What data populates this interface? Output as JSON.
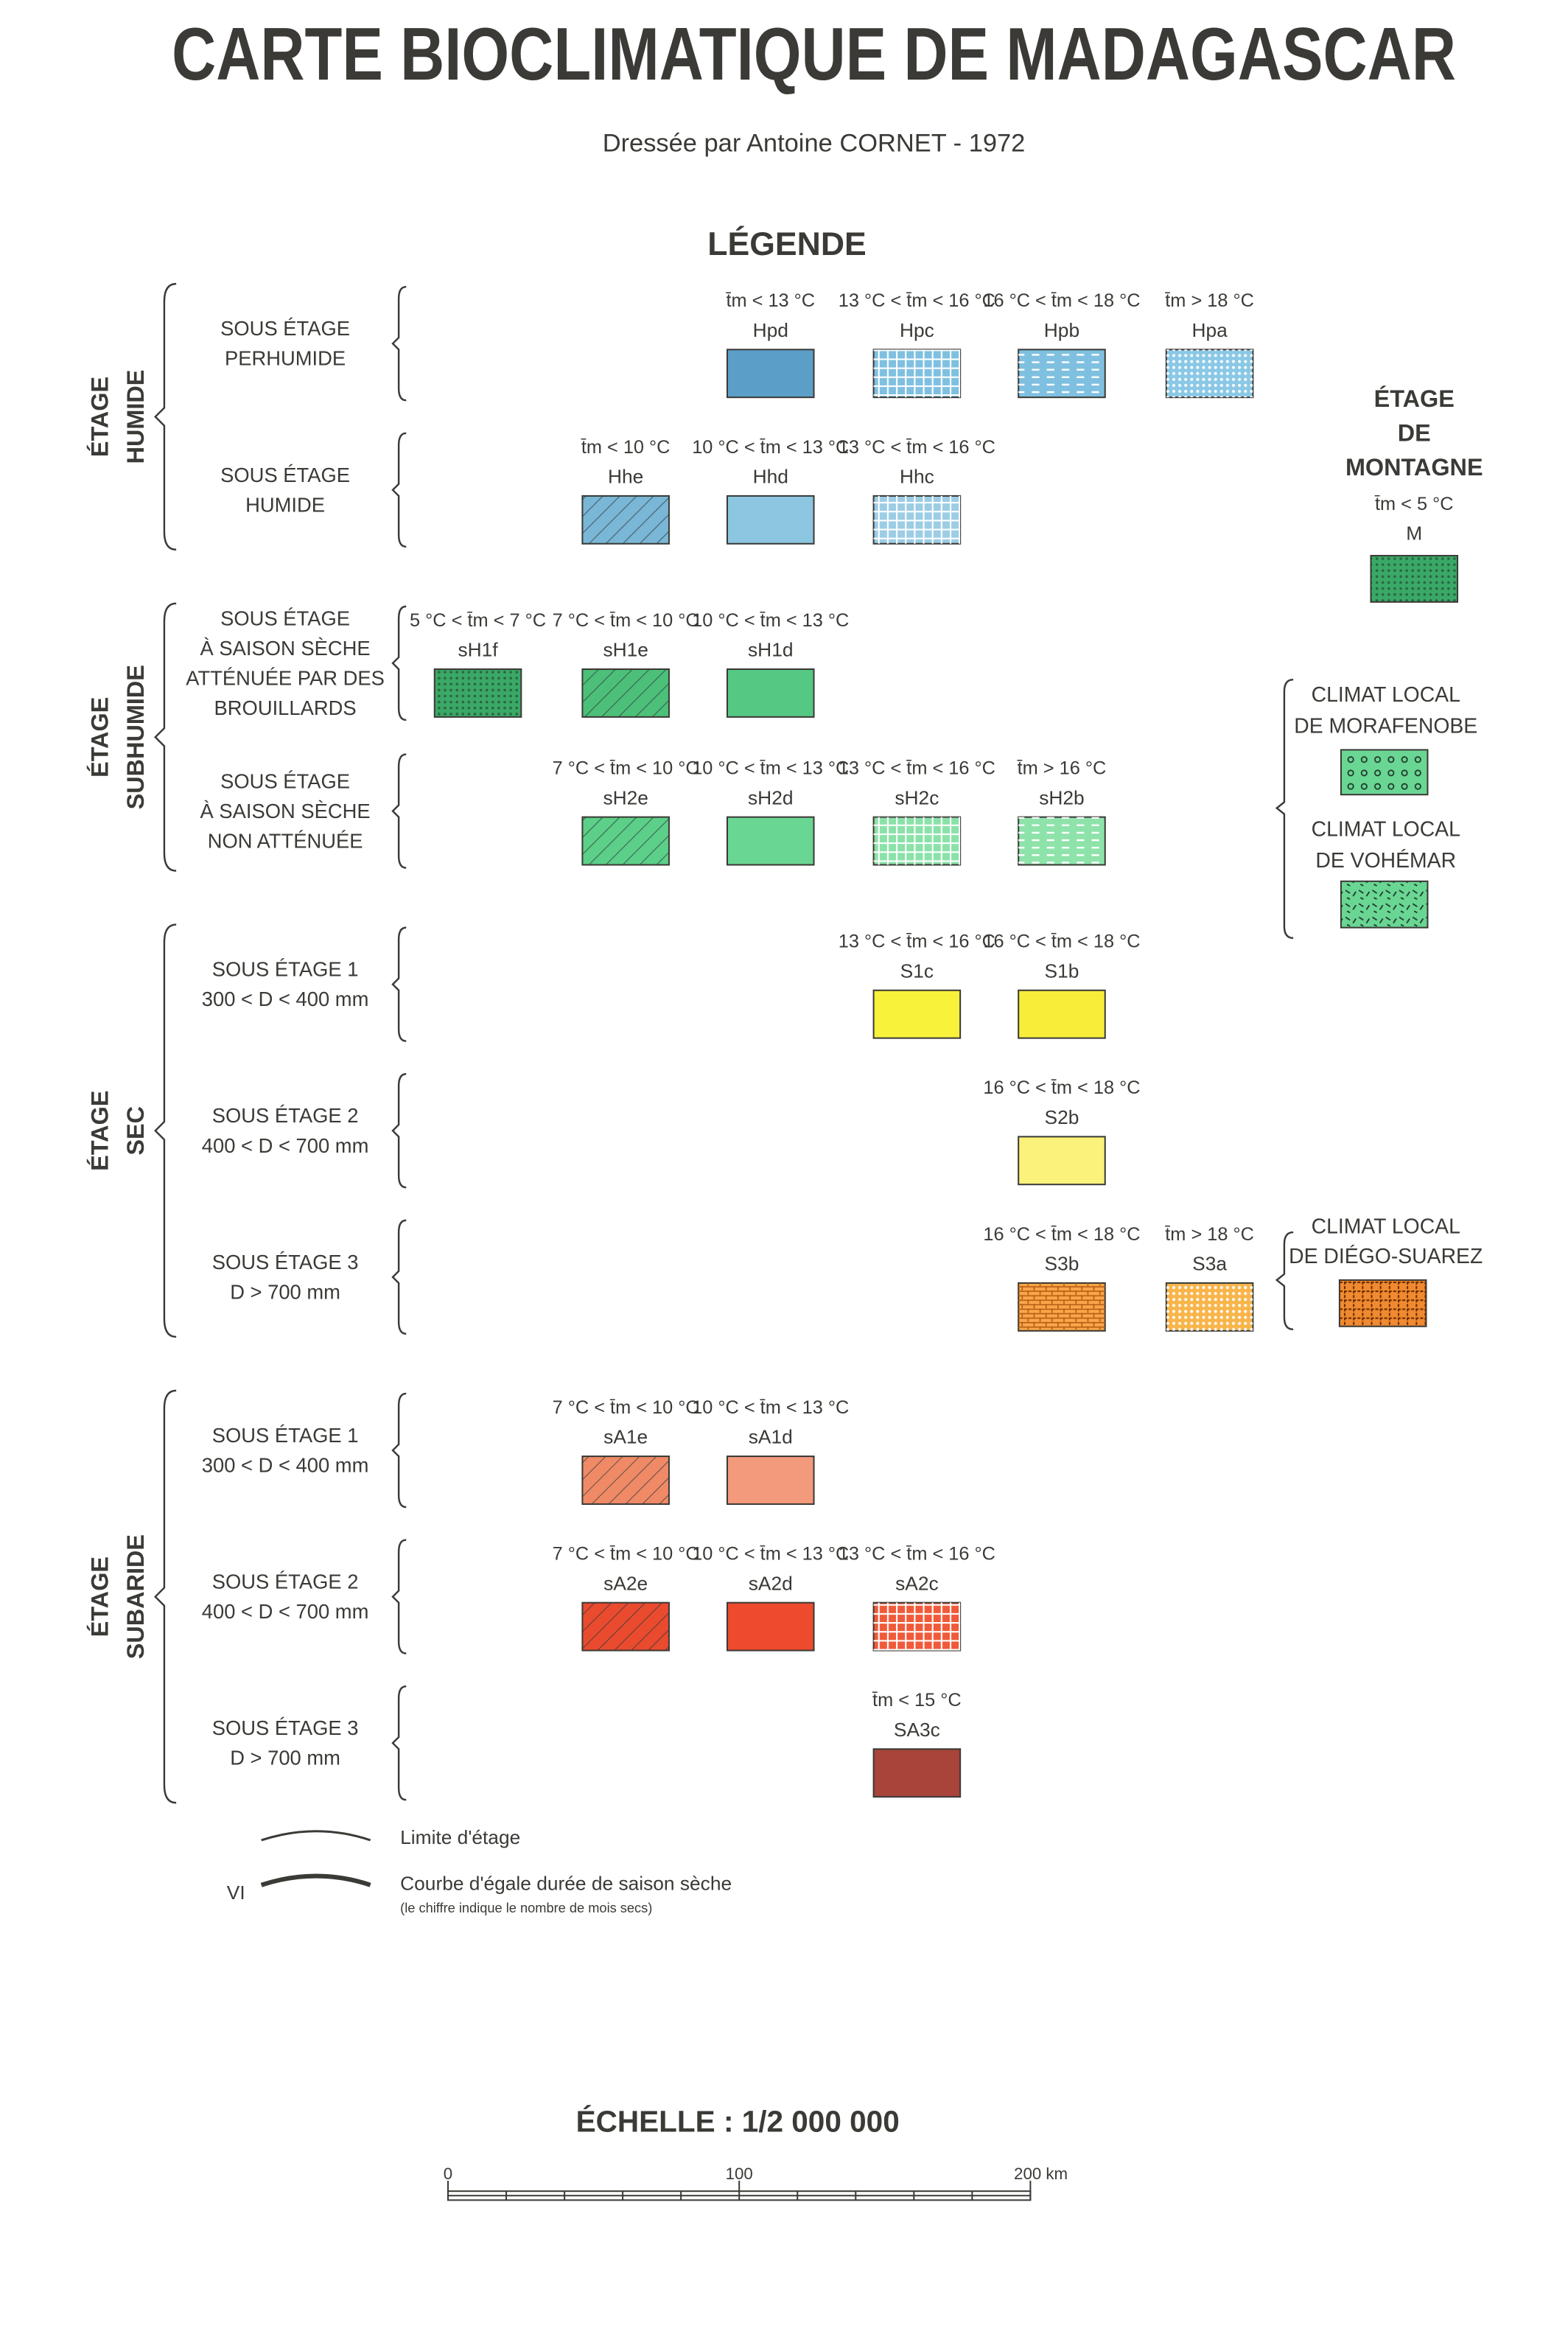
{
  "title": "CARTE BIOCLIMATIQUE DE MADAGASCAR",
  "subtitle": "Dressée par Antoine CORNET - 1972",
  "legend_title": "LÉGENDE",
  "etages": [
    {
      "name": [
        "ÉTAGE",
        "HUMIDE"
      ],
      "sous_etages": [
        {
          "label": [
            "SOUS ÉTAGE",
            "PERHUMIDE"
          ],
          "classes": [
            {
              "range": "t̄m < 13 °C",
              "code": "Hpd"
            },
            {
              "range": "13 °C < t̄m < 16 °C",
              "code": "Hpc"
            },
            {
              "range": "16 °C < t̄m < 18 °C",
              "code": "Hpb"
            },
            {
              "range": "t̄m > 18 °C",
              "code": "Hpa"
            }
          ]
        },
        {
          "label": [
            "SOUS ÉTAGE",
            "HUMIDE"
          ],
          "classes": [
            {
              "range": "t̄m < 10 °C",
              "code": "Hhe"
            },
            {
              "range": "10 °C < t̄m < 13 °C",
              "code": "Hhd"
            },
            {
              "range": "13 °C < t̄m < 16 °C",
              "code": "Hhc"
            }
          ]
        }
      ]
    },
    {
      "name": [
        "ÉTAGE",
        "SUBHUMIDE"
      ],
      "sous_etages": [
        {
          "label": [
            "SOUS ÉTAGE",
            "À SAISON SÈCHE",
            "ATTÉNUÉE PAR DES",
            "BROUILLARDS"
          ],
          "classes": [
            {
              "range": "5 °C < t̄m < 7 °C",
              "code": "sH1f"
            },
            {
              "range": "7 °C < t̄m < 10 °C",
              "code": "sH1e"
            },
            {
              "range": "10 °C < t̄m < 13 °C",
              "code": "sH1d"
            }
          ]
        },
        {
          "label": [
            "SOUS ÉTAGE",
            "À SAISON SÈCHE",
            "NON ATTÉNUÉE"
          ],
          "classes": [
            {
              "range": "7 °C < t̄m < 10 °C",
              "code": "sH2e"
            },
            {
              "range": "10 °C < t̄m < 13 °C",
              "code": "sH2d"
            },
            {
              "range": "13 °C < t̄m < 16 °C",
              "code": "sH2c"
            },
            {
              "range": "t̄m > 16 °C",
              "code": "sH2b"
            }
          ]
        }
      ]
    },
    {
      "name": [
        "ÉTAGE",
        "SEC"
      ],
      "sous_etages": [
        {
          "label": [
            "SOUS ÉTAGE 1",
            "300 < D < 400 mm"
          ],
          "classes": [
            {
              "range": "13 °C < t̄m < 16 °C",
              "code": "S1c"
            },
            {
              "range": "16 °C < t̄m < 18 °C",
              "code": "S1b"
            }
          ]
        },
        {
          "label": [
            "SOUS ÉTAGE 2",
            "400 < D < 700 mm"
          ],
          "classes": [
            {
              "range": "16 °C < t̄m < 18 °C",
              "code": "S2b"
            }
          ]
        },
        {
          "label": [
            "SOUS ÉTAGE 3",
            "D > 700 mm"
          ],
          "classes": [
            {
              "range": "16 °C < t̄m < 18 °C",
              "code": "S3b"
            },
            {
              "range": "t̄m > 18 °C",
              "code": "S3a"
            }
          ]
        }
      ]
    },
    {
      "name": [
        "ÉTAGE",
        "SUBARIDE"
      ],
      "sous_etages": [
        {
          "label": [
            "SOUS ÉTAGE 1",
            "300 < D < 400 mm"
          ],
          "classes": [
            {
              "range": "7 °C < t̄m < 10 °C",
              "code": "sA1e"
            },
            {
              "range": "10 °C < t̄m < 13 °C",
              "code": "sA1d"
            }
          ]
        },
        {
          "label": [
            "SOUS ÉTAGE 2",
            "400 < D < 700 mm"
          ],
          "classes": [
            {
              "range": "7 °C < t̄m < 10 °C",
              "code": "sA2e"
            },
            {
              "range": "10 °C < t̄m < 13 °C",
              "code": "sA2d"
            },
            {
              "range": "13 °C < t̄m < 16 °C",
              "code": "sA2c"
            }
          ]
        },
        {
          "label": [
            "SOUS ÉTAGE 3",
            "D > 700 mm"
          ],
          "classes": [
            {
              "range": "t̄m < 15 °C",
              "code": "SA3c"
            }
          ]
        }
      ]
    }
  ],
  "montagne": {
    "name": [
      "ÉTAGE",
      "DE",
      "MONTAGNE"
    ],
    "range": "t̄m < 5 °C",
    "code": "M"
  },
  "climats_locaux": [
    {
      "name": [
        "CLIMAT LOCAL",
        "DE MORAFENOBE"
      ]
    },
    {
      "name": [
        "CLIMAT LOCAL",
        "DE VOHÉMAR"
      ]
    },
    {
      "name": [
        "CLIMAT LOCAL",
        "DE DIÉGO-SUAREZ"
      ]
    }
  ],
  "symbols": [
    {
      "label": "Limite d'étage"
    },
    {
      "marker": "VI",
      "label": "Courbe d'égale durée de saison sèche",
      "note": "(le chiffre indique le nombre de mois secs)"
    }
  ],
  "scale": {
    "title": "ÉCHELLE : 1/2 000 000",
    "ticks": [
      "0",
      "100",
      "200 km"
    ]
  }
}
